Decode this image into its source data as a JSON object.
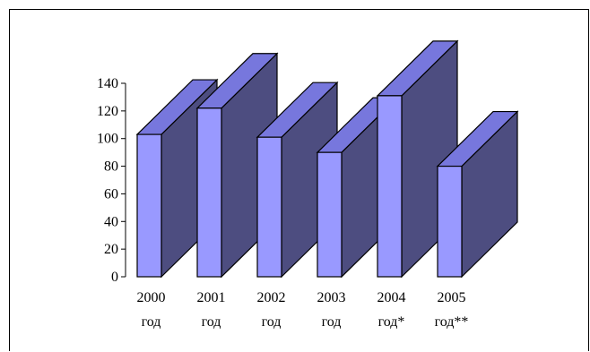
{
  "chart_data": {
    "type": "bar",
    "style": "3d",
    "categories": [
      [
        "2000",
        "год"
      ],
      [
        "2001",
        "год"
      ],
      [
        "2002",
        "год"
      ],
      [
        "2003",
        "год"
      ],
      [
        "2004",
        "год*"
      ],
      [
        "2005",
        "год**"
      ]
    ],
    "values": [
      103,
      122,
      101,
      90,
      131,
      80
    ],
    "ylim": [
      0,
      140
    ],
    "yticks": [
      "0",
      "20",
      "40",
      "60",
      "80",
      "100",
      "120",
      "140"
    ],
    "title": "",
    "xlabel": "",
    "ylabel": "",
    "colors": {
      "front": "#9999ff",
      "side": "#4d4d80",
      "top": "#7777dd",
      "outline": "#000000"
    }
  }
}
